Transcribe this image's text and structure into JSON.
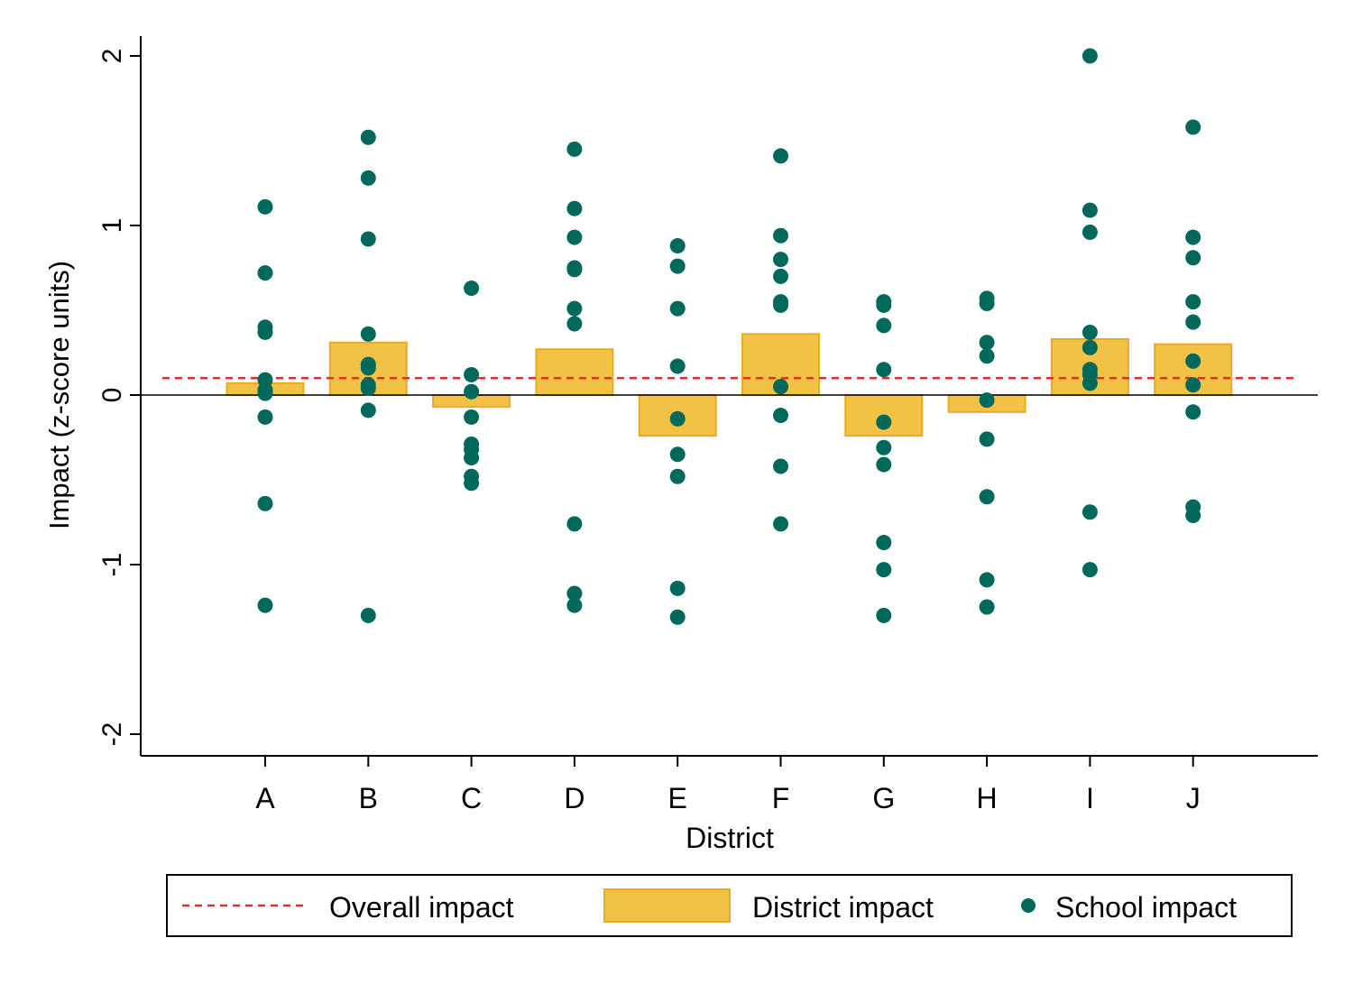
{
  "chart_data": {
    "type": "bar",
    "xlabel": "District",
    "ylabel": "Impact (z-score units)",
    "categories": [
      "A",
      "B",
      "C",
      "D",
      "E",
      "F",
      "G",
      "H",
      "I",
      "J"
    ],
    "ylim": [
      -2.12,
      2.12
    ],
    "yticks": [
      -2,
      -1,
      0,
      1,
      2
    ],
    "grid": false,
    "overall_impact": 0.1,
    "series": [
      {
        "name": "District impact",
        "type": "bar",
        "color": "#f2c244",
        "values": [
          0.07,
          0.31,
          -0.07,
          0.27,
          -0.24,
          0.36,
          -0.24,
          -0.1,
          0.33,
          0.3
        ]
      },
      {
        "name": "School impact",
        "type": "scatter",
        "color": "#00695c",
        "points": [
          {
            "x": "A",
            "values": [
              1.11,
              0.72,
              0.4,
              0.37,
              0.09,
              0.03,
              0.01,
              -0.13,
              -0.64,
              -1.24
            ]
          },
          {
            "x": "B",
            "values": [
              1.52,
              1.28,
              0.92,
              0.36,
              0.18,
              0.16,
              0.06,
              0.04,
              -0.09,
              -1.3
            ]
          },
          {
            "x": "C",
            "values": [
              0.63,
              0.12,
              0.02,
              -0.13,
              -0.29,
              -0.32,
              -0.37,
              -0.48,
              -0.52
            ]
          },
          {
            "x": "D",
            "values": [
              1.45,
              1.1,
              0.93,
              0.75,
              0.74,
              0.51,
              0.42,
              -0.76,
              -1.17,
              -1.24
            ]
          },
          {
            "x": "E",
            "values": [
              0.88,
              0.76,
              0.51,
              0.17,
              -0.14,
              -0.35,
              -0.48,
              -1.14,
              -1.31
            ]
          },
          {
            "x": "F",
            "values": [
              1.41,
              0.94,
              0.8,
              0.7,
              0.55,
              0.53,
              0.05,
              -0.12,
              -0.42,
              -0.76
            ]
          },
          {
            "x": "G",
            "values": [
              0.55,
              0.53,
              0.41,
              0.15,
              -0.16,
              -0.31,
              -0.41,
              -0.87,
              -1.03,
              -1.3
            ]
          },
          {
            "x": "H",
            "values": [
              0.57,
              0.54,
              0.31,
              0.23,
              -0.03,
              -0.26,
              -0.6,
              -1.09,
              -1.25
            ]
          },
          {
            "x": "I",
            "values": [
              2.0,
              1.09,
              0.96,
              0.37,
              0.28,
              0.15,
              0.12,
              0.07,
              -0.69,
              -1.03
            ]
          },
          {
            "x": "J",
            "values": [
              1.58,
              0.93,
              0.81,
              0.55,
              0.43,
              0.2,
              0.06,
              -0.1,
              -0.66,
              -0.71
            ]
          }
        ]
      },
      {
        "name": "Overall impact",
        "type": "line",
        "style": "dashed",
        "color": "#d9322a"
      }
    ],
    "legend": {
      "position": "bottom",
      "items": [
        {
          "label": "Overall impact",
          "kind": "line",
          "color": "#d9322a"
        },
        {
          "label": "District impact",
          "kind": "bar",
          "color": "#f2c244"
        },
        {
          "label": "School impact",
          "kind": "dot",
          "color": "#00695c"
        }
      ]
    }
  }
}
